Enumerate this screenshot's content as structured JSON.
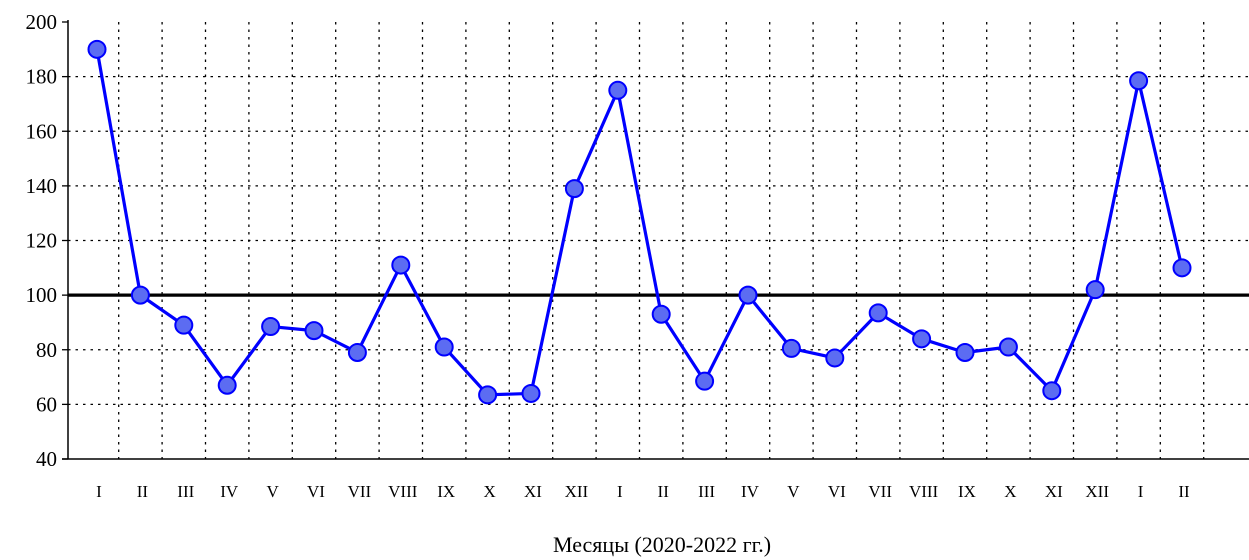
{
  "chart_data": {
    "type": "line",
    "title": "",
    "xlabel": "Месяцы (2020-2022 гг.)",
    "ylabel": "",
    "categories": [
      "I",
      "II",
      "III",
      "IV",
      "V",
      "VI",
      "VII",
      "VIII",
      "IX",
      "X",
      "XI",
      "XII",
      "I",
      "II",
      "III",
      "IV",
      "V",
      "VI",
      "VII",
      "VIII",
      "IX",
      "X",
      "XI",
      "XII",
      "I",
      "II"
    ],
    "series": [
      {
        "values": [
          190,
          100,
          89,
          67,
          88.5,
          87,
          79,
          111,
          81,
          63.5,
          64,
          139,
          175,
          93,
          68.5,
          100,
          80.5,
          77,
          93.5,
          84,
          79,
          81,
          65,
          102,
          178.5,
          110
        ]
      }
    ],
    "ylim": [
      40,
      200
    ],
    "yticks": [
      40,
      60,
      80,
      100,
      120,
      140,
      160,
      180,
      200
    ],
    "reference_line": 100,
    "grid": true,
    "colors": {
      "series": "#0000ff",
      "marker_fill": "#5c6cf2",
      "reference": "#000000",
      "grid": "#000000"
    }
  }
}
